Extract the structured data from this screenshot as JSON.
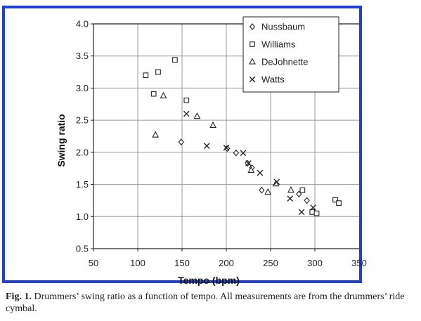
{
  "colors": {
    "frame": "#1f3fd6",
    "ink": "#222222",
    "grid": "#9a9a9a"
  },
  "chart_data": {
    "type": "scatter",
    "xlabel": "Tempo (bpm)",
    "ylabel": "Swing ratio",
    "xlim": [
      50,
      350
    ],
    "ylim": [
      0.5,
      4.0
    ],
    "x_ticks": [
      "50",
      "100",
      "150",
      "200",
      "250",
      "300",
      "350"
    ],
    "y_ticks": [
      "0.5",
      "1.0",
      "1.5",
      "2.0",
      "2.5",
      "3.0",
      "3.5",
      "4.0"
    ],
    "grid": true,
    "legend_position": "top-right",
    "series": [
      {
        "name": "Nussbaum",
        "marker": "diamond",
        "points": [
          [
            149,
            2.16
          ],
          [
            201,
            2.06
          ],
          [
            211,
            1.99
          ],
          [
            224,
            1.83
          ],
          [
            229,
            1.76
          ],
          [
            240,
            1.41
          ],
          [
            282,
            1.35
          ],
          [
            291,
            1.25
          ]
        ]
      },
      {
        "name": "Williams",
        "marker": "square",
        "points": [
          [
            109,
            3.2
          ],
          [
            118,
            2.91
          ],
          [
            123,
            3.25
          ],
          [
            142,
            3.44
          ],
          [
            155,
            2.81
          ],
          [
            286,
            1.41
          ],
          [
            297,
            1.07
          ],
          [
            302,
            1.05
          ],
          [
            323,
            1.26
          ],
          [
            327,
            1.21
          ]
        ]
      },
      {
        "name": "DeJohnette",
        "marker": "triangle",
        "points": [
          [
            120,
            2.27
          ],
          [
            129,
            2.88
          ],
          [
            167,
            2.56
          ],
          [
            185,
            2.42
          ],
          [
            228,
            1.72
          ],
          [
            247,
            1.38
          ],
          [
            256,
            1.51
          ],
          [
            273,
            1.41
          ]
        ]
      },
      {
        "name": "Watts",
        "marker": "x",
        "points": [
          [
            155,
            2.6
          ],
          [
            178,
            2.1
          ],
          [
            200,
            2.07
          ],
          [
            219,
            1.99
          ],
          [
            225,
            1.83
          ],
          [
            238,
            1.68
          ],
          [
            257,
            1.54
          ],
          [
            272,
            1.28
          ],
          [
            285,
            1.07
          ],
          [
            298,
            1.14
          ]
        ]
      }
    ]
  },
  "caption": {
    "label": "Fig. 1.",
    "text": " Drummers’ swing ratio as a function of tempo. All measurements are from the drummers’ ride cymbal."
  }
}
